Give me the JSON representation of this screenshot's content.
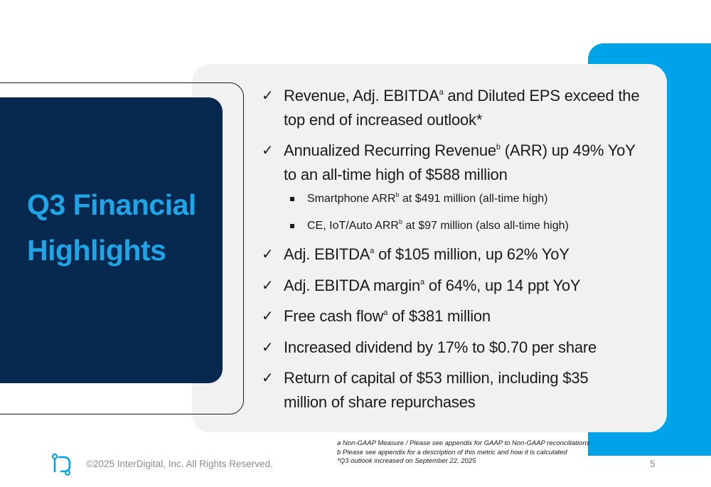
{
  "slide": {
    "title_line1": "Q3 Financial",
    "title_line2": "Highlights",
    "page_number": "5"
  },
  "colors": {
    "navy": "#07284f",
    "accent_blue": "#00a3e8",
    "title_blue": "#1fa4e6",
    "card_gray": "#f1f1f2"
  },
  "bullets": [
    {
      "kind": "check",
      "lines": [
        {
          "segments": [
            {
              "t": "Revenue, Adj. EBITDA"
            },
            {
              "sup": "a"
            },
            {
              "t": " and Diluted EPS exceed the"
            }
          ]
        },
        {
          "segments": [
            {
              "t": "top end of increased outlook*"
            }
          ]
        }
      ]
    },
    {
      "kind": "check",
      "lines": [
        {
          "segments": [
            {
              "t": "Annualized Recurring Revenue"
            },
            {
              "sup": "b"
            },
            {
              "t": " (ARR) up 49% YoY"
            }
          ]
        },
        {
          "segments": [
            {
              "t": "to an all-time high of $588 million"
            }
          ]
        }
      ]
    },
    {
      "kind": "square",
      "lines": [
        {
          "segments": [
            {
              "t": "Smartphone ARR"
            },
            {
              "sup": "b"
            },
            {
              "t": " at $491 million (all-time high)"
            }
          ]
        }
      ]
    },
    {
      "kind": "square",
      "lines": [
        {
          "segments": [
            {
              "t": "CE, IoT/Auto ARR"
            },
            {
              "sup": "b"
            },
            {
              "t": " at $97 million (also all-time high)"
            }
          ]
        }
      ]
    },
    {
      "kind": "check",
      "lines": [
        {
          "segments": [
            {
              "t": "Adj. EBITDA"
            },
            {
              "sup": "a"
            },
            {
              "t": " of $105 million, up 62% YoY"
            }
          ]
        }
      ]
    },
    {
      "kind": "check",
      "lines": [
        {
          "segments": [
            {
              "t": "Adj. EBITDA margin"
            },
            {
              "sup": "a"
            },
            {
              "t": " of 64%, up 14 ppt YoY"
            }
          ]
        }
      ]
    },
    {
      "kind": "check",
      "lines": [
        {
          "segments": [
            {
              "t": "Free cash flow"
            },
            {
              "sup": "a"
            },
            {
              "t": " of $381 million"
            }
          ]
        }
      ]
    },
    {
      "kind": "check",
      "lines": [
        {
          "segments": [
            {
              "t": "Increased dividend by 17% to $0.70 per share"
            }
          ]
        }
      ]
    },
    {
      "kind": "check",
      "lines": [
        {
          "segments": [
            {
              "t": "Return of capital of $53 million, including $35"
            }
          ]
        },
        {
          "segments": [
            {
              "t": "million of share repurchases"
            }
          ]
        }
      ]
    }
  ],
  "check_symbol": "✓",
  "footnotes": [
    "a Non-GAAP Measure / Please see appendix for GAAP to Non-GAAP reconciliations",
    "b Please see appendix for a description of this metric and how it is calculated",
    "*Q3 outlook increased on September 22, 2025"
  ],
  "footer": {
    "copyright": "©2025 InterDigital, Inc. All Rights Reserved.",
    "logo_icon": "interdigital-logo-icon"
  }
}
